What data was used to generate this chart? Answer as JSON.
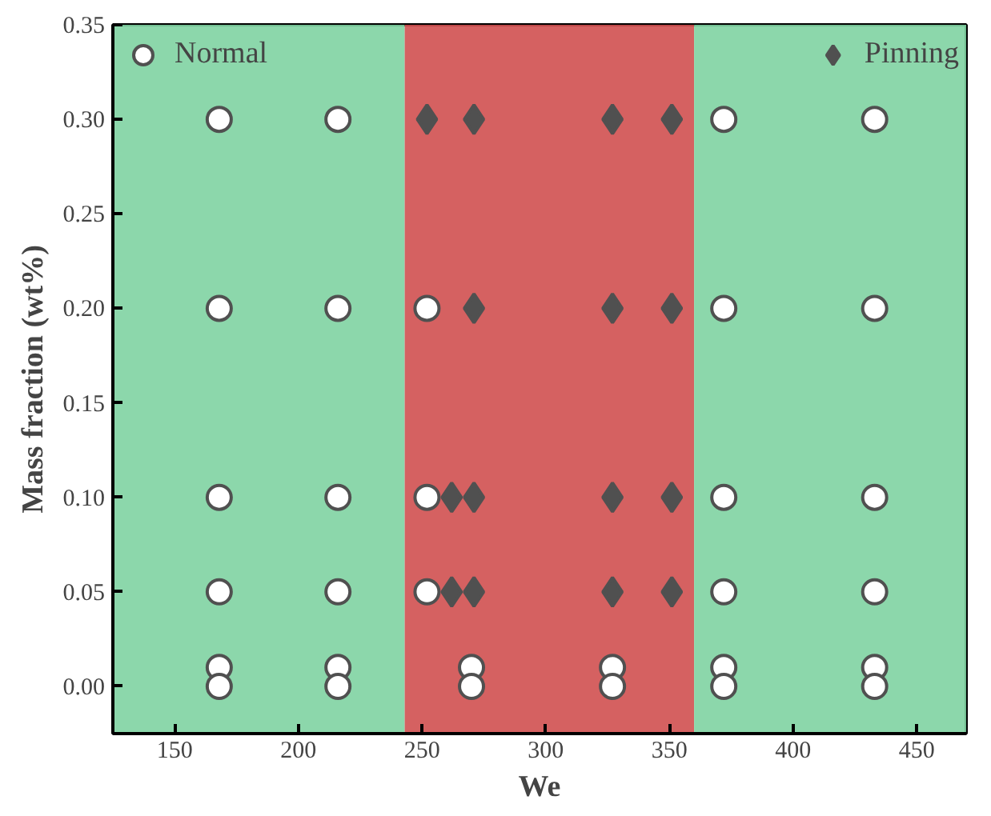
{
  "chart_data": {
    "type": "scatter",
    "xlabel": "We",
    "ylabel": "Mass fraction (wt%)",
    "xlim": [
      125,
      470
    ],
    "ylim": [
      -0.025,
      0.35
    ],
    "xticks": [
      150,
      200,
      250,
      300,
      350,
      400,
      450
    ],
    "yticks": [
      {
        "value": 0,
        "label": "0.00"
      },
      {
        "value": 0.05,
        "label": "0.05"
      },
      {
        "value": 0.1,
        "label": "0.10"
      },
      {
        "value": 0.15,
        "label": "0.15"
      },
      {
        "value": 0.2,
        "label": "0.20"
      },
      {
        "value": 0.25,
        "label": "0.25"
      },
      {
        "value": 0.3,
        "label": "0.30"
      },
      {
        "value": 0.35,
        "label": "0.35"
      }
    ],
    "series": [
      {
        "name": "Normal",
        "color": "#ffffff",
        "marker": "circle",
        "x": [
          168,
          216,
          372,
          433,
          168,
          216,
          252,
          372,
          433,
          168,
          216,
          252,
          372,
          433,
          168,
          216,
          252,
          372,
          433,
          168,
          216,
          270,
          327,
          372,
          433,
          168,
          216,
          270,
          327,
          372,
          433
        ],
        "values": [
          0.3,
          0.3,
          0.3,
          0.3,
          0.2,
          0.2,
          0.2,
          0.2,
          0.2,
          0.1,
          0.1,
          0.1,
          0.1,
          0.1,
          0.05,
          0.05,
          0.05,
          0.05,
          0.05,
          0.01,
          0.01,
          0.01,
          0.01,
          0.01,
          0.01,
          0,
          0,
          0,
          0,
          0,
          0
        ]
      },
      {
        "name": "Pinning",
        "color": "#505050",
        "marker": "diamond",
        "x": [
          252,
          271,
          327,
          351,
          271,
          327,
          351,
          262,
          271,
          327,
          351,
          262,
          271,
          327,
          351
        ],
        "values": [
          0.3,
          0.3,
          0.3,
          0.3,
          0.2,
          0.2,
          0.2,
          0.1,
          0.1,
          0.1,
          0.1,
          0.05,
          0.05,
          0.05,
          0.05
        ]
      }
    ],
    "bands": [
      {
        "axis": "x",
        "from": 125,
        "to": 243,
        "color": "#7fd3a2"
      },
      {
        "axis": "x",
        "from": 243,
        "to": 360,
        "color": "#d05050"
      },
      {
        "axis": "x",
        "from": 360,
        "to": 470,
        "color": "#7fd3a2"
      }
    ],
    "legend": "top",
    "grid": false
  }
}
